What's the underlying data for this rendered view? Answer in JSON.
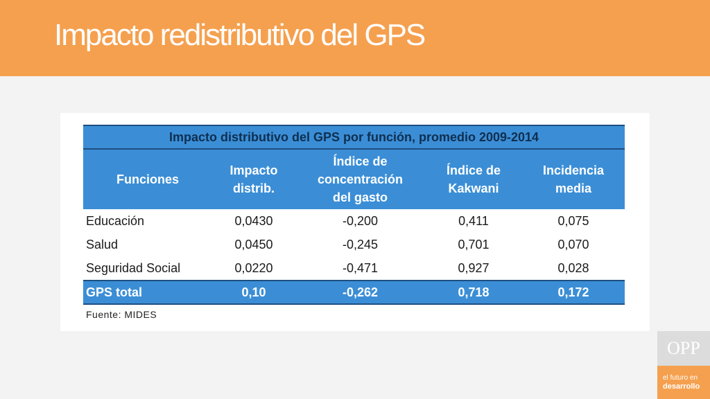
{
  "slide": {
    "title": "Impacto redistributivo del GPS"
  },
  "table": {
    "caption": "Impacto distributivo del GPS por función, promedio 2009-2014",
    "headers": [
      "Funciones",
      "Impacto distrib.",
      "Índice de concentración del gasto",
      "Índice de Kakwani",
      "Incidencia media"
    ],
    "rows": [
      [
        "Educación",
        "0,0430",
        "-0,200",
        "0,411",
        "0,075"
      ],
      [
        "Salud",
        "0,0450",
        "-0,245",
        "0,701",
        "0,070"
      ],
      [
        "Seguridad Social",
        "0,0220",
        "-0,471",
        "0,927",
        "0,028"
      ]
    ],
    "total": [
      "GPS total",
      "0,10",
      "-0,262",
      "0,718",
      "0,172"
    ],
    "source": "Fuente: MIDES"
  },
  "branding": {
    "logo": "OPP",
    "tagline_line1": "el futuro en",
    "tagline_line2": "desarrollo"
  },
  "colors": {
    "accent_orange": "#f5a04f",
    "table_blue": "#3b8ed6",
    "table_border": "#1d4f80"
  }
}
